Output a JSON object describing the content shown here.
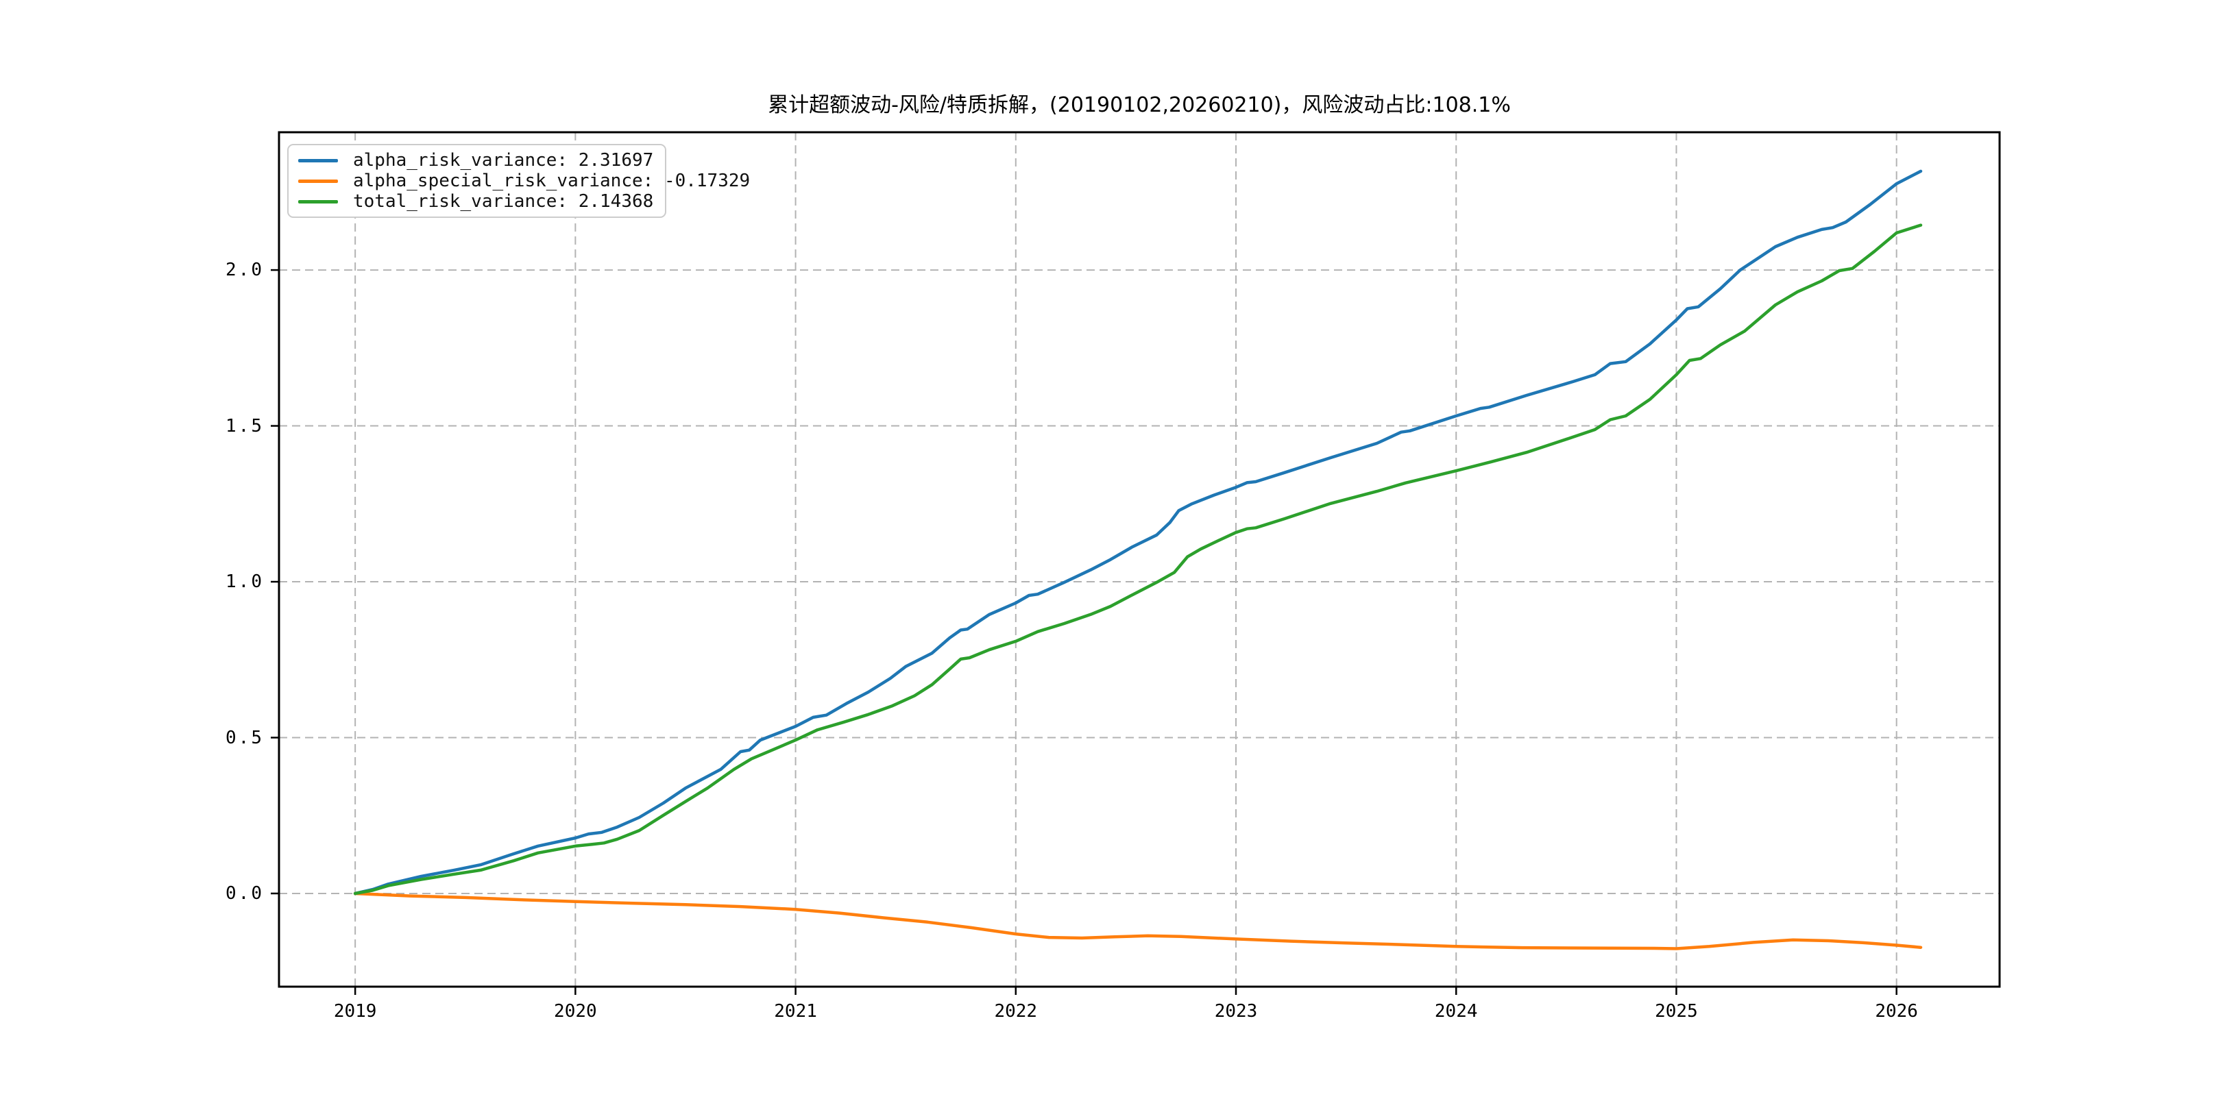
{
  "title": "累计超额波动-风险/特质拆解，(20190102,20260210)，风险波动占比:108.1%",
  "colors": {
    "grid": "#b3b3b3",
    "spine": "#000000",
    "background": "#ffffff",
    "legend_border": "#cccccc"
  },
  "chart_data": {
    "type": "line",
    "title": "累计超额波动-风险/特质拆解，(20190102,20260210)，风险波动占比:108.1%",
    "xlabel": "",
    "ylabel": "",
    "grid": true,
    "grid_style": "dashed",
    "legend_position": "upper-left",
    "x_axis": {
      "tick_labels": [
        "2019",
        "2020",
        "2021",
        "2022",
        "2023",
        "2024",
        "2025",
        "2026"
      ],
      "tick_values": [
        2019,
        2020,
        2021,
        2022,
        2023,
        2024,
        2025,
        2026
      ],
      "range": [
        2018.654,
        2026.468
      ]
    },
    "y_axis": {
      "tick_labels": [
        "0.0",
        "0.5",
        "1.0",
        "1.5",
        "2.0"
      ],
      "tick_values": [
        0.0,
        0.5,
        1.0,
        1.5,
        2.0
      ],
      "range": [
        -0.299,
        2.442
      ]
    },
    "date_span": "(20190102,20260210)",
    "risk_ratio": "108.1%",
    "series": [
      {
        "name": "alpha_risk_variance",
        "end_value": 2.31697,
        "legend_label": "alpha_risk_variance: 2.31697",
        "color": "#1f77b4",
        "points": [
          [
            2019.0,
            0.0
          ],
          [
            2019.08,
            0.013
          ],
          [
            2019.15,
            0.03
          ],
          [
            2019.3,
            0.055
          ],
          [
            2019.45,
            0.075
          ],
          [
            2019.57,
            0.092
          ],
          [
            2019.71,
            0.125
          ],
          [
            2019.83,
            0.152
          ],
          [
            2020.0,
            0.178
          ],
          [
            2020.06,
            0.191
          ],
          [
            2020.12,
            0.196
          ],
          [
            2020.19,
            0.213
          ],
          [
            2020.29,
            0.244
          ],
          [
            2020.4,
            0.29
          ],
          [
            2020.5,
            0.338
          ],
          [
            2020.66,
            0.398
          ],
          [
            2020.75,
            0.455
          ],
          [
            2020.79,
            0.46
          ],
          [
            2020.84,
            0.492
          ],
          [
            2021.0,
            0.536
          ],
          [
            2021.08,
            0.565
          ],
          [
            2021.14,
            0.572
          ],
          [
            2021.23,
            0.609
          ],
          [
            2021.33,
            0.646
          ],
          [
            2021.43,
            0.69
          ],
          [
            2021.5,
            0.728
          ],
          [
            2021.62,
            0.771
          ],
          [
            2021.7,
            0.82
          ],
          [
            2021.75,
            0.845
          ],
          [
            2021.78,
            0.848
          ],
          [
            2021.88,
            0.895
          ],
          [
            2022.0,
            0.932
          ],
          [
            2022.06,
            0.956
          ],
          [
            2022.1,
            0.96
          ],
          [
            2022.22,
            0.998
          ],
          [
            2022.34,
            1.038
          ],
          [
            2022.43,
            1.071
          ],
          [
            2022.53,
            1.112
          ],
          [
            2022.64,
            1.15
          ],
          [
            2022.7,
            1.19
          ],
          [
            2022.74,
            1.228
          ],
          [
            2022.8,
            1.25
          ],
          [
            2022.9,
            1.278
          ],
          [
            2023.0,
            1.303
          ],
          [
            2023.05,
            1.318
          ],
          [
            2023.09,
            1.321
          ],
          [
            2023.22,
            1.35
          ],
          [
            2023.43,
            1.398
          ],
          [
            2023.64,
            1.444
          ],
          [
            2023.75,
            1.48
          ],
          [
            2023.79,
            1.484
          ],
          [
            2024.0,
            1.532
          ],
          [
            2024.11,
            1.556
          ],
          [
            2024.15,
            1.56
          ],
          [
            2024.32,
            1.598
          ],
          [
            2024.53,
            1.642
          ],
          [
            2024.63,
            1.664
          ],
          [
            2024.7,
            1.7
          ],
          [
            2024.77,
            1.706
          ],
          [
            2024.88,
            1.763
          ],
          [
            2025.0,
            1.84
          ],
          [
            2025.05,
            1.876
          ],
          [
            2025.1,
            1.882
          ],
          [
            2025.2,
            1.94
          ],
          [
            2025.29,
            2.0
          ],
          [
            2025.38,
            2.042
          ],
          [
            2025.45,
            2.075
          ],
          [
            2025.55,
            2.105
          ],
          [
            2025.66,
            2.13
          ],
          [
            2025.71,
            2.136
          ],
          [
            2025.77,
            2.154
          ],
          [
            2025.88,
            2.21
          ],
          [
            2026.0,
            2.277
          ],
          [
            2026.11,
            2.317
          ]
        ]
      },
      {
        "name": "alpha_special_risk_variance",
        "end_value": -0.17329,
        "legend_label": "alpha_special_risk_variance: -0.17329",
        "color": "#ff7f0e",
        "points": [
          [
            2019.0,
            0.0
          ],
          [
            2019.25,
            -0.008
          ],
          [
            2019.5,
            -0.013
          ],
          [
            2019.75,
            -0.02
          ],
          [
            2020.0,
            -0.026
          ],
          [
            2020.25,
            -0.031
          ],
          [
            2020.5,
            -0.036
          ],
          [
            2020.75,
            -0.042
          ],
          [
            2021.0,
            -0.051
          ],
          [
            2021.2,
            -0.063
          ],
          [
            2021.4,
            -0.078
          ],
          [
            2021.6,
            -0.092
          ],
          [
            2021.8,
            -0.11
          ],
          [
            2022.0,
            -0.13
          ],
          [
            2022.15,
            -0.141
          ],
          [
            2022.3,
            -0.143
          ],
          [
            2022.45,
            -0.139
          ],
          [
            2022.6,
            -0.136
          ],
          [
            2022.75,
            -0.138
          ],
          [
            2023.0,
            -0.146
          ],
          [
            2023.25,
            -0.153
          ],
          [
            2023.5,
            -0.159
          ],
          [
            2023.75,
            -0.164
          ],
          [
            2024.0,
            -0.17
          ],
          [
            2024.3,
            -0.174
          ],
          [
            2024.6,
            -0.175
          ],
          [
            2024.9,
            -0.176
          ],
          [
            2025.0,
            -0.177
          ],
          [
            2025.15,
            -0.17
          ],
          [
            2025.35,
            -0.157
          ],
          [
            2025.53,
            -0.149
          ],
          [
            2025.7,
            -0.152
          ],
          [
            2025.85,
            -0.158
          ],
          [
            2026.0,
            -0.166
          ],
          [
            2026.11,
            -0.173
          ]
        ]
      },
      {
        "name": "total_risk_variance",
        "end_value": 2.14368,
        "legend_label": "total_risk_variance: 2.14368",
        "color": "#2ca02c",
        "points": [
          [
            2019.0,
            0.0
          ],
          [
            2019.08,
            0.01
          ],
          [
            2019.15,
            0.025
          ],
          [
            2019.3,
            0.045
          ],
          [
            2019.45,
            0.062
          ],
          [
            2019.57,
            0.075
          ],
          [
            2019.72,
            0.105
          ],
          [
            2019.83,
            0.13
          ],
          [
            2020.0,
            0.152
          ],
          [
            2020.08,
            0.158
          ],
          [
            2020.13,
            0.162
          ],
          [
            2020.19,
            0.174
          ],
          [
            2020.29,
            0.202
          ],
          [
            2020.4,
            0.251
          ],
          [
            2020.5,
            0.295
          ],
          [
            2020.6,
            0.338
          ],
          [
            2020.72,
            0.398
          ],
          [
            2020.8,
            0.432
          ],
          [
            2020.9,
            0.462
          ],
          [
            2021.0,
            0.492
          ],
          [
            2021.1,
            0.525
          ],
          [
            2021.22,
            0.55
          ],
          [
            2021.33,
            0.574
          ],
          [
            2021.44,
            0.602
          ],
          [
            2021.54,
            0.634
          ],
          [
            2021.62,
            0.67
          ],
          [
            2021.7,
            0.72
          ],
          [
            2021.75,
            0.752
          ],
          [
            2021.79,
            0.756
          ],
          [
            2021.88,
            0.782
          ],
          [
            2022.0,
            0.809
          ],
          [
            2022.1,
            0.84
          ],
          [
            2022.22,
            0.866
          ],
          [
            2022.34,
            0.895
          ],
          [
            2022.43,
            0.921
          ],
          [
            2022.53,
            0.958
          ],
          [
            2022.64,
            0.998
          ],
          [
            2022.72,
            1.03
          ],
          [
            2022.78,
            1.08
          ],
          [
            2022.84,
            1.105
          ],
          [
            2022.92,
            1.132
          ],
          [
            2023.0,
            1.158
          ],
          [
            2023.05,
            1.17
          ],
          [
            2023.09,
            1.173
          ],
          [
            2023.22,
            1.202
          ],
          [
            2023.43,
            1.251
          ],
          [
            2023.64,
            1.29
          ],
          [
            2023.77,
            1.317
          ],
          [
            2024.0,
            1.356
          ],
          [
            2024.16,
            1.385
          ],
          [
            2024.32,
            1.415
          ],
          [
            2024.53,
            1.464
          ],
          [
            2024.63,
            1.488
          ],
          [
            2024.7,
            1.52
          ],
          [
            2024.77,
            1.532
          ],
          [
            2024.88,
            1.585
          ],
          [
            2025.0,
            1.664
          ],
          [
            2025.06,
            1.71
          ],
          [
            2025.11,
            1.716
          ],
          [
            2025.2,
            1.76
          ],
          [
            2025.31,
            1.804
          ],
          [
            2025.45,
            1.888
          ],
          [
            2025.55,
            1.93
          ],
          [
            2025.66,
            1.965
          ],
          [
            2025.74,
            1.998
          ],
          [
            2025.8,
            2.005
          ],
          [
            2025.9,
            2.06
          ],
          [
            2026.0,
            2.119
          ],
          [
            2026.11,
            2.144
          ]
        ]
      }
    ]
  }
}
